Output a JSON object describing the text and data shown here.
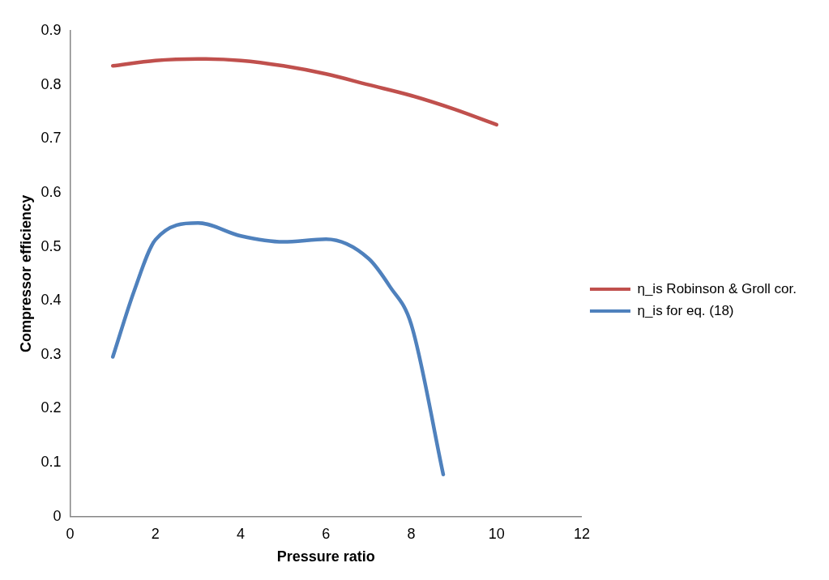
{
  "chart_data": {
    "type": "line",
    "xlabel": "Pressure ratio",
    "ylabel": "Compressor efficiency",
    "xlim": [
      0,
      12
    ],
    "xticks": [
      0,
      2,
      4,
      6,
      8,
      10,
      12
    ],
    "ylim": [
      0,
      0.9
    ],
    "yticks": [
      0,
      0.1,
      0.2,
      0.3,
      0.4,
      0.5,
      0.6,
      0.7,
      0.8,
      0.9
    ],
    "grid": false,
    "legend": "right",
    "marker": "none",
    "series": [
      {
        "name": "η_is Robinson & Groll cor.",
        "color": "#c0504d",
        "x": [
          1,
          2,
          3,
          4,
          5,
          6,
          7,
          8,
          9,
          10
        ],
        "values": [
          0.835,
          0.845,
          0.848,
          0.845,
          0.835,
          0.82,
          0.8,
          0.78,
          0.755,
          0.726
        ]
      },
      {
        "name": "η_is for eq. (18)",
        "color": "#4f81bd",
        "x": [
          1,
          1.5,
          2,
          3,
          4,
          5,
          6,
          7,
          7.5,
          8,
          8.75
        ],
        "values": [
          0.296,
          0.418,
          0.513,
          0.544,
          0.52,
          0.509,
          0.514,
          0.478,
          0.426,
          0.356,
          0.078
        ]
      }
    ]
  }
}
